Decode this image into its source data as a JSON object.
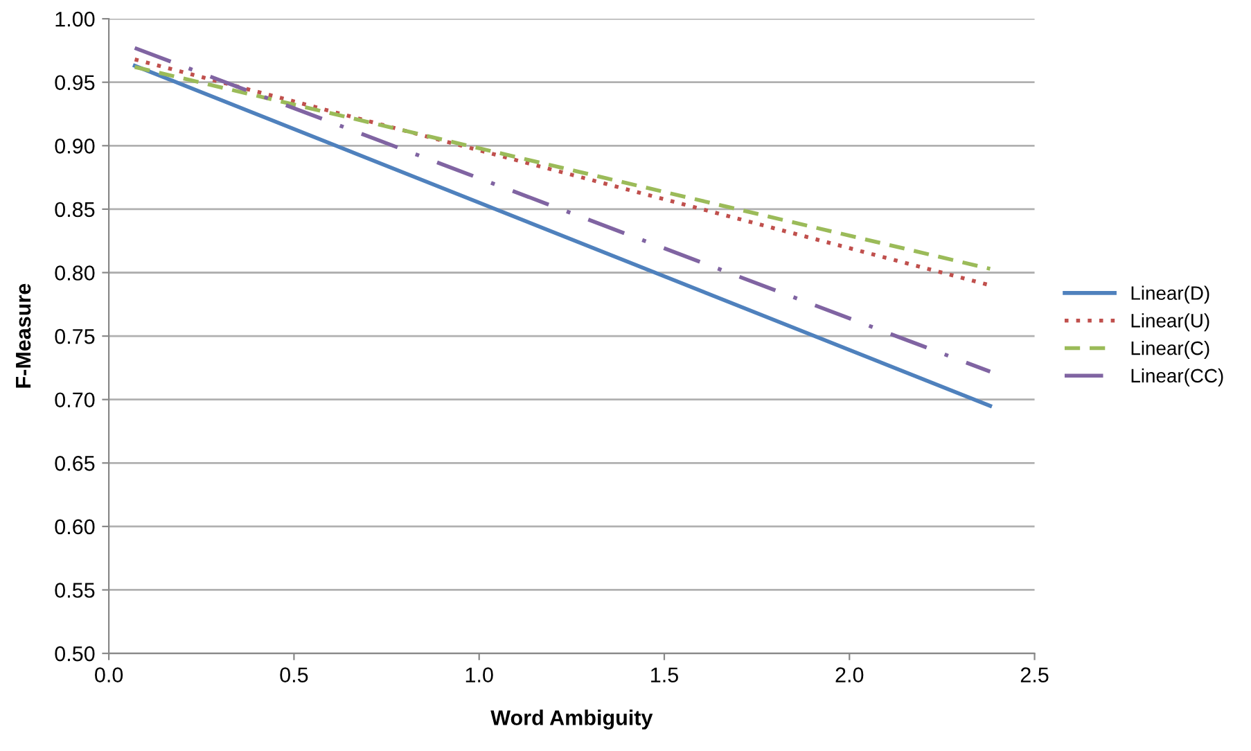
{
  "chart_data": {
    "type": "line",
    "xlabel": "Word Ambiguity",
    "ylabel": "F-Measure",
    "xlim": [
      0.0,
      2.5
    ],
    "xticks": [
      {
        "value": 0,
        "label": "0.0"
      },
      0.5,
      {
        "value": 1,
        "label": "1.0"
      },
      1.5,
      {
        "value": 2,
        "label": "2.0"
      },
      2.5
    ],
    "ylim": [
      0.5,
      1.0
    ],
    "yticks": [
      {
        "value": 0.5,
        "label": "0.50"
      },
      0.55,
      {
        "value": 0.6,
        "label": "0.60"
      },
      0.65,
      {
        "value": 0.7,
        "label": "0.70"
      },
      0.75,
      {
        "value": 0.8,
        "label": "0.80"
      },
      0.85,
      {
        "value": 0.9,
        "label": "0.90"
      },
      0.95,
      {
        "value": 1.0,
        "label": "1.00"
      }
    ],
    "x": [
      0.07,
      2.38
    ],
    "grid": "y",
    "legend": "right",
    "marker": "none",
    "series": [
      {
        "name": "Linear(D)",
        "color": "#4f81bd",
        "line_style": "solid",
        "values": [
          0.963,
          0.695
        ]
      },
      {
        "name": "Linear(U)",
        "color": "#c0504d",
        "line_style": "dotted",
        "values": [
          0.968,
          0.79
        ]
      },
      {
        "name": "Linear(C)",
        "color": "#9bbb59",
        "line_style": "dashed",
        "values": [
          0.962,
          0.803
        ]
      },
      {
        "name": "Linear(CC)",
        "color": "#8064a2",
        "line_style": "dashdot",
        "values": [
          0.977,
          0.722
        ]
      }
    ]
  }
}
